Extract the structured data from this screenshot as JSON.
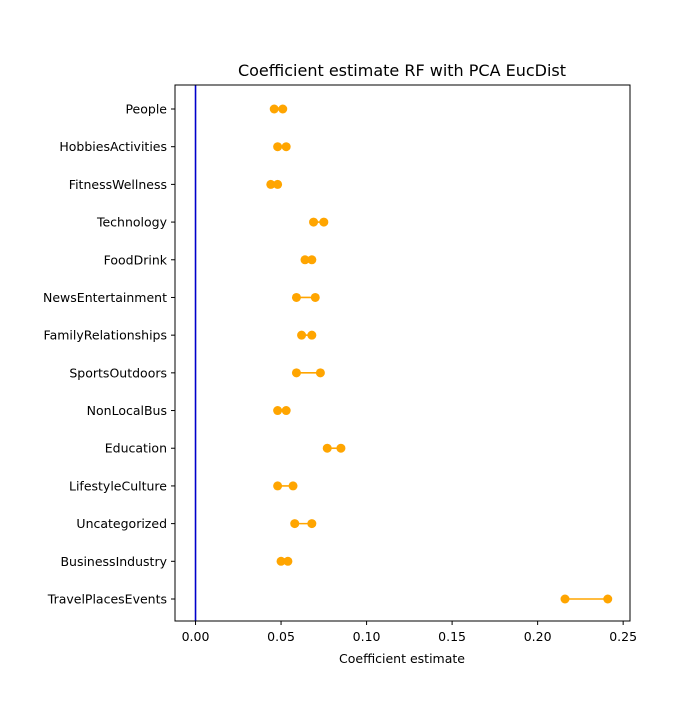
{
  "chart_data": {
    "type": "scatter",
    "title": "Coefficient estimate RF  with PCA EucDist",
    "xlabel": "Coefficient estimate",
    "ylabel": "",
    "xlim": [
      -0.012,
      0.254
    ],
    "xticks": [
      0.0,
      0.05,
      0.1,
      0.15,
      0.2,
      0.25
    ],
    "xtick_labels": [
      "0.00",
      "0.05",
      "0.10",
      "0.15",
      "0.20",
      "0.25"
    ],
    "reference_line": {
      "x": 0.0,
      "color": "#0000cc"
    },
    "point_color": "#ffa500",
    "grid": false,
    "categories": [
      "People",
      "HobbiesActivities",
      "FitnessWellness",
      "Technology",
      "FoodDrink",
      "NewsEntertainment",
      "FamilyRelationships",
      "SportsOutdoors",
      "NonLocalBus",
      "Education",
      "LifestyleCulture",
      "Uncategorized",
      "BusinessIndustry",
      "TravelPlacesEvents"
    ],
    "intervals": [
      {
        "low": 0.046,
        "high": 0.051
      },
      {
        "low": 0.048,
        "high": 0.053
      },
      {
        "low": 0.044,
        "high": 0.048
      },
      {
        "low": 0.069,
        "high": 0.075
      },
      {
        "low": 0.064,
        "high": 0.068
      },
      {
        "low": 0.059,
        "high": 0.07
      },
      {
        "low": 0.062,
        "high": 0.068
      },
      {
        "low": 0.059,
        "high": 0.073
      },
      {
        "low": 0.048,
        "high": 0.053
      },
      {
        "low": 0.077,
        "high": 0.085
      },
      {
        "low": 0.048,
        "high": 0.057
      },
      {
        "low": 0.058,
        "high": 0.068
      },
      {
        "low": 0.05,
        "high": 0.054
      },
      {
        "low": 0.216,
        "high": 0.241
      }
    ]
  }
}
